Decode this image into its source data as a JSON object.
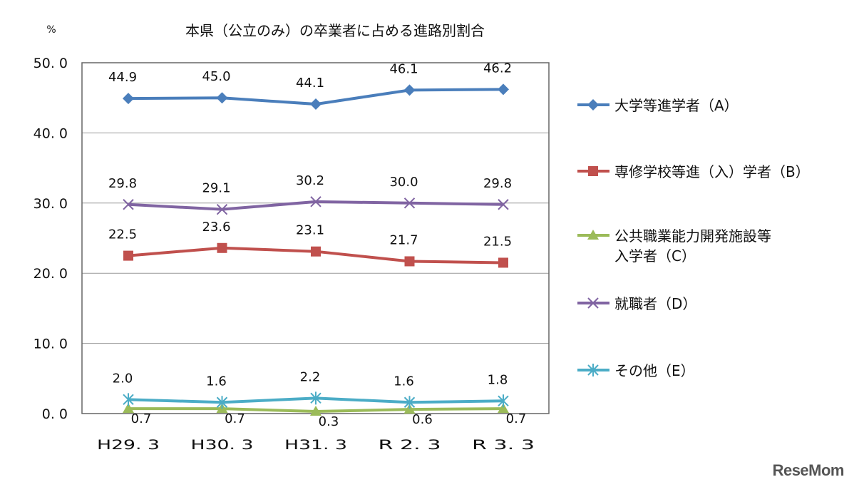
{
  "chart_data": {
    "type": "line",
    "title": "本県（公立のみ）の卒業者に占める進路別割合",
    "ylabel": "%",
    "ylim": [
      0,
      50
    ],
    "yticks": [
      "0.0",
      "10.0",
      "20.0",
      "30.0",
      "40.0",
      "50.0"
    ],
    "grid": true,
    "legend": "right",
    "categories": [
      "H29.3",
      "H30.3",
      "H31.3",
      "R 2.3",
      "R 3.3"
    ],
    "series": [
      {
        "name": "大学等進学者（A）",
        "values": [
          44.9,
          45.0,
          44.1,
          46.1,
          46.2
        ],
        "labels": [
          "44.9",
          "45.0",
          "44.1",
          "46.1",
          "46.2"
        ],
        "color": "#4a7ebb",
        "marker": "diamond"
      },
      {
        "name": "専修学校等進（入）学者（B）",
        "values": [
          22.5,
          23.6,
          23.1,
          21.7,
          21.5
        ],
        "labels": [
          "22.5",
          "23.6",
          "23.1",
          "21.7",
          "21.5"
        ],
        "color": "#c0504d",
        "marker": "square"
      },
      {
        "name": "公共職業能力開発施設等入学者（C）",
        "values": [
          0.7,
          0.7,
          0.3,
          0.6,
          0.7
        ],
        "labels": [
          "0.7",
          "0.7",
          "0.3",
          "0.6",
          "0.7"
        ],
        "color": "#9bbb59",
        "marker": "triangle"
      },
      {
        "name": "就職者（D）",
        "values": [
          29.8,
          29.1,
          30.2,
          30.0,
          29.8
        ],
        "labels": [
          "29.8",
          "29.1",
          "30.2",
          "30.0",
          "29.8"
        ],
        "color": "#8064a2",
        "marker": "x"
      },
      {
        "name": "その他（E）",
        "values": [
          2.0,
          1.6,
          2.2,
          1.6,
          1.8
        ],
        "labels": [
          "2.0",
          "1.6",
          "2.2",
          "1.6",
          "1.8"
        ],
        "color": "#4bacc6",
        "marker": "star"
      }
    ],
    "legend_lines": [
      [
        "大学等進学者（A）"
      ],
      [
        "専修学校等進（入）学者（B）"
      ],
      [
        "公共職業能力開発施設等",
        "入学者（C）"
      ],
      [
        "就職者（D）"
      ],
      [
        "その他（E）"
      ]
    ]
  },
  "watermark": "ReseMom"
}
